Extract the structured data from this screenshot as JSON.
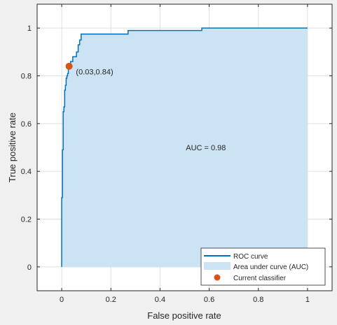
{
  "chart_data": {
    "type": "area",
    "xlabel": "False positive rate",
    "ylabel": "True positive rate",
    "xlim": [
      -0.1,
      1.1
    ],
    "ylim": [
      -0.1,
      1.1
    ],
    "xticks": [
      0,
      0.2,
      0.4,
      0.6,
      0.8,
      1
    ],
    "xtick_labels": [
      "0",
      "0.2",
      "0.4",
      "0.6",
      "0.8",
      "1"
    ],
    "yticks": [
      0,
      0.2,
      0.4,
      0.6,
      0.8,
      1
    ],
    "ytick_labels": [
      "0",
      "0.2",
      "0.4",
      "0.6",
      "0.8",
      "1"
    ],
    "grid": true,
    "legend_position": "bottom-right",
    "series": [
      {
        "name": "ROC curve",
        "kind": "line",
        "color": "#0072bd",
        "x": [
          0.0,
          0.0,
          0.003,
          0.003,
          0.006,
          0.006,
          0.009,
          0.009,
          0.012,
          0.012,
          0.015,
          0.015,
          0.018,
          0.018,
          0.021,
          0.021,
          0.024,
          0.024,
          0.027,
          0.027,
          0.03,
          0.03,
          0.036,
          0.036,
          0.045,
          0.045,
          0.06,
          0.06,
          0.067,
          0.067,
          0.073,
          0.073,
          0.079,
          0.079,
          0.27,
          0.27,
          0.57,
          0.57,
          1.0
        ],
        "y": [
          0.0,
          0.29,
          0.29,
          0.49,
          0.49,
          0.65,
          0.65,
          0.67,
          0.67,
          0.74,
          0.74,
          0.76,
          0.76,
          0.79,
          0.79,
          0.8,
          0.8,
          0.81,
          0.81,
          0.83,
          0.83,
          0.84,
          0.84,
          0.86,
          0.86,
          0.88,
          0.88,
          0.9,
          0.9,
          0.93,
          0.93,
          0.95,
          0.95,
          0.975,
          0.975,
          0.99,
          0.99,
          1.0,
          1.0
        ]
      },
      {
        "name": "Area under curve (AUC)",
        "kind": "area",
        "color": "#cce3f3"
      },
      {
        "name": "Current classifier",
        "kind": "scatter",
        "color": "#d95319",
        "x": [
          0.03
        ],
        "y": [
          0.84
        ]
      }
    ],
    "annotations": [
      {
        "text": "(0.03,0.84)",
        "x": 0.058,
        "y": 0.818
      },
      {
        "text": "AUC = 0.98",
        "x": 0.505,
        "y": 0.5
      }
    ]
  }
}
